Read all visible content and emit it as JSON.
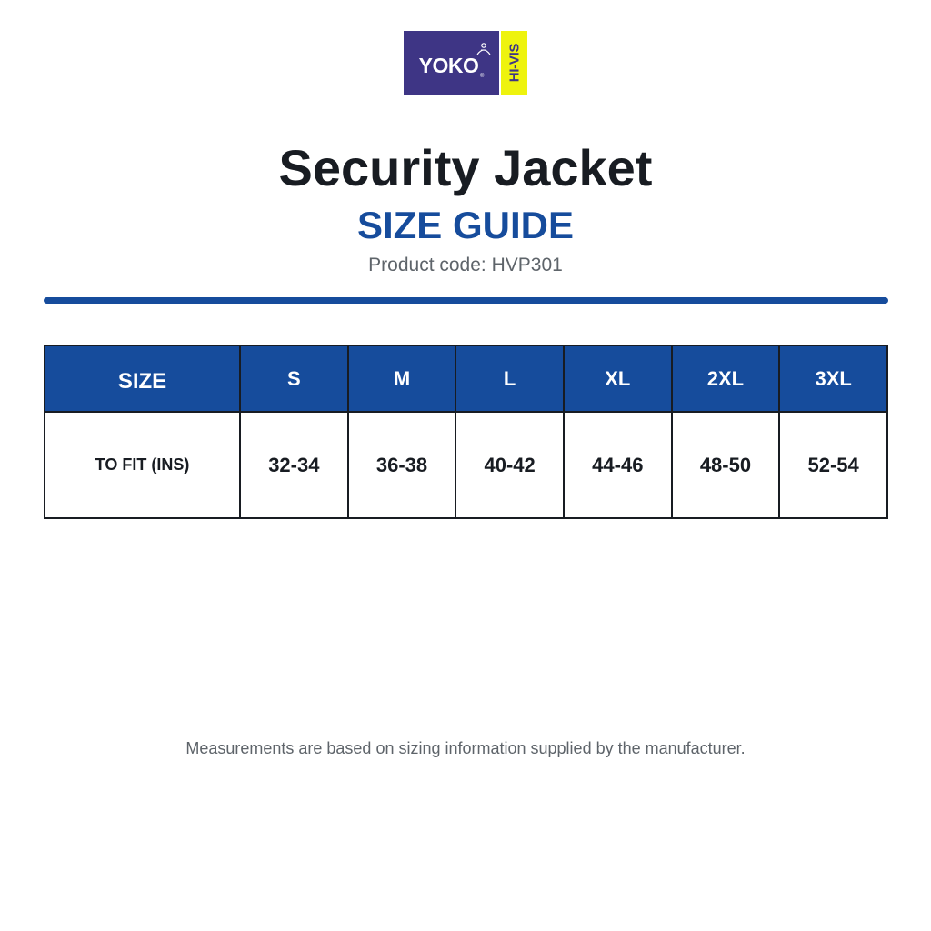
{
  "brand": {
    "name": "YOKO",
    "tagline": "HI-VIS",
    "colors": {
      "primary": "#3e3585",
      "accent": "#eef30e"
    }
  },
  "title": "Security Jacket",
  "subtitle": "SIZE GUIDE",
  "product_code": "Product code: HVP301",
  "table": {
    "header_label": "SIZE",
    "sizes": [
      "S",
      "M",
      "L",
      "XL",
      "2XL",
      "3XL"
    ],
    "row_label": "TO FIT (INS)",
    "values": [
      "32-34",
      "36-38",
      "40-42",
      "44-46",
      "48-50",
      "52-54"
    ]
  },
  "footnote": "Measurements are based on sizing information supplied by the manufacturer.",
  "colors": {
    "header_blue": "#164c9c",
    "text_dark": "#181c22",
    "text_gray": "#5e646a"
  }
}
